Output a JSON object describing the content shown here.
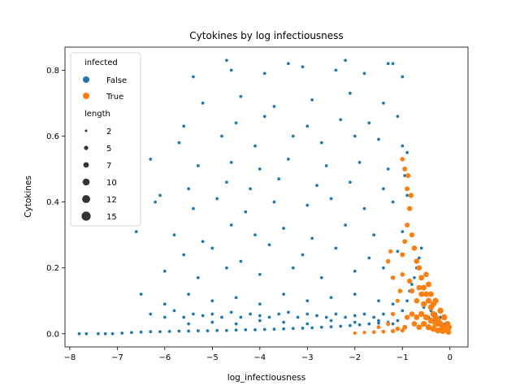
{
  "chart_data": {
    "type": "scatter",
    "title": "Cytokines by log infectiousness",
    "xlabel": "log_infectiousness",
    "ylabel": "Cytokines",
    "xlim": [
      -8.1,
      0.38
    ],
    "ylim": [
      -0.04,
      0.87
    ],
    "x_ticks": [
      -8,
      -7,
      -6,
      -5,
      -4,
      -3,
      -2,
      -1,
      0
    ],
    "y_ticks": [
      0.0,
      0.2,
      0.4,
      0.6,
      0.8
    ],
    "grid": false,
    "legend": {
      "placement": "top-left",
      "hue_title": "infected",
      "hue_entries": [
        {
          "label": "False",
          "color": "#1f77b4"
        },
        {
          "label": "True",
          "color": "#ff7f0e"
        }
      ],
      "size_title": "length",
      "size_entries": [
        {
          "label": "2",
          "value": 2
        },
        {
          "label": "5",
          "value": 5
        },
        {
          "label": "7",
          "value": 7
        },
        {
          "label": "10",
          "value": 10
        },
        {
          "label": "12",
          "value": 12
        },
        {
          "label": "15",
          "value": 15
        }
      ]
    },
    "series": [
      {
        "name": "False",
        "color": "#1f77b4",
        "points": [
          [
            -7.8,
            0.0
          ],
          [
            -7.65,
            0.0
          ],
          [
            -7.4,
            0.0
          ],
          [
            -7.25,
            0.0
          ],
          [
            -7.1,
            0.0
          ],
          [
            -6.9,
            0.002
          ],
          [
            -6.7,
            0.004
          ],
          [
            -6.5,
            0.005
          ],
          [
            -6.3,
            0.006
          ],
          [
            -6.1,
            0.006
          ],
          [
            -5.9,
            0.007
          ],
          [
            -5.7,
            0.008
          ],
          [
            -5.5,
            0.008
          ],
          [
            -5.3,
            0.009
          ],
          [
            -5.1,
            0.009
          ],
          [
            -4.9,
            0.01
          ],
          [
            -4.7,
            0.01
          ],
          [
            -4.5,
            0.011
          ],
          [
            -4.3,
            0.012
          ],
          [
            -4.1,
            0.012
          ],
          [
            -3.9,
            0.013
          ],
          [
            -3.7,
            0.014
          ],
          [
            -3.5,
            0.015
          ],
          [
            -3.3,
            0.016
          ],
          [
            -3.1,
            0.017
          ],
          [
            -2.9,
            0.018
          ],
          [
            -2.7,
            0.02
          ],
          [
            -2.5,
            0.021
          ],
          [
            -2.3,
            0.023
          ],
          [
            -2.1,
            0.025
          ],
          [
            -1.9,
            0.027
          ],
          [
            -1.7,
            0.03
          ],
          [
            -1.5,
            0.032
          ],
          [
            -1.3,
            0.035
          ],
          [
            -1.1,
            0.04
          ],
          [
            -6.3,
            0.06
          ],
          [
            -6.0,
            0.05
          ],
          [
            -5.8,
            0.07
          ],
          [
            -5.6,
            0.05
          ],
          [
            -5.4,
            0.06
          ],
          [
            -5.2,
            0.055
          ],
          [
            -5.0,
            0.06
          ],
          [
            -4.8,
            0.05
          ],
          [
            -4.6,
            0.065
          ],
          [
            -4.4,
            0.05
          ],
          [
            -4.2,
            0.06
          ],
          [
            -4.0,
            0.055
          ],
          [
            -3.8,
            0.05
          ],
          [
            -3.6,
            0.06
          ],
          [
            -3.4,
            0.065
          ],
          [
            -3.2,
            0.05
          ],
          [
            -3.0,
            0.06
          ],
          [
            -2.8,
            0.055
          ],
          [
            -2.6,
            0.05
          ],
          [
            -2.4,
            0.06
          ],
          [
            -2.2,
            0.05
          ],
          [
            -2.0,
            0.055
          ],
          [
            -1.8,
            0.06
          ],
          [
            -1.6,
            0.05
          ],
          [
            -1.4,
            0.06
          ],
          [
            -5.5,
            0.03
          ],
          [
            -5.0,
            0.035
          ],
          [
            -4.5,
            0.03
          ],
          [
            -4.0,
            0.04
          ],
          [
            -3.5,
            0.035
          ],
          [
            -3.0,
            0.03
          ],
          [
            -2.5,
            0.04
          ],
          [
            -2.0,
            0.035
          ],
          [
            -1.5,
            0.04
          ],
          [
            -1.2,
            0.03
          ],
          [
            -6.5,
            0.12
          ],
          [
            -6.0,
            0.09
          ],
          [
            -5.5,
            0.12
          ],
          [
            -5.0,
            0.1
          ],
          [
            -4.5,
            0.11
          ],
          [
            -4.0,
            0.09
          ],
          [
            -3.5,
            0.12
          ],
          [
            -3.0,
            0.1
          ],
          [
            -2.5,
            0.11
          ],
          [
            -2.0,
            0.12
          ],
          [
            -1.5,
            0.1
          ],
          [
            -1.2,
            0.09
          ],
          [
            -6.0,
            0.19
          ],
          [
            -5.3,
            0.17
          ],
          [
            -4.7,
            0.2
          ],
          [
            -4.0,
            0.18
          ],
          [
            -3.3,
            0.2
          ],
          [
            -2.7,
            0.17
          ],
          [
            -2.0,
            0.19
          ],
          [
            -1.4,
            0.2
          ],
          [
            -5.6,
            0.24
          ],
          [
            -5.0,
            0.26
          ],
          [
            -4.4,
            0.22
          ],
          [
            -3.8,
            0.27
          ],
          [
            -3.1,
            0.24
          ],
          [
            -2.4,
            0.26
          ],
          [
            -1.7,
            0.23
          ],
          [
            -1.1,
            0.25
          ],
          [
            -6.6,
            0.31
          ],
          [
            -5.8,
            0.3
          ],
          [
            -5.2,
            0.28
          ],
          [
            -4.6,
            0.33
          ],
          [
            -4.1,
            0.3
          ],
          [
            -3.5,
            0.32
          ],
          [
            -2.9,
            0.29
          ],
          [
            -2.2,
            0.33
          ],
          [
            -1.6,
            0.3
          ],
          [
            -1.0,
            0.31
          ],
          [
            -6.2,
            0.4
          ],
          [
            -5.4,
            0.38
          ],
          [
            -4.9,
            0.41
          ],
          [
            -4.3,
            0.37
          ],
          [
            -3.7,
            0.4
          ],
          [
            -3.0,
            0.39
          ],
          [
            -2.5,
            0.41
          ],
          [
            -1.8,
            0.38
          ],
          [
            -1.2,
            0.4
          ],
          [
            -0.9,
            0.42
          ],
          [
            -6.1,
            0.42
          ],
          [
            -5.5,
            0.44
          ],
          [
            -4.7,
            0.46
          ],
          [
            -4.2,
            0.44
          ],
          [
            -3.6,
            0.47
          ],
          [
            -2.8,
            0.45
          ],
          [
            -2.1,
            0.46
          ],
          [
            -1.4,
            0.44
          ],
          [
            -0.95,
            0.48
          ],
          [
            -6.3,
            0.53
          ],
          [
            -5.3,
            0.51
          ],
          [
            -4.6,
            0.52
          ],
          [
            -4.0,
            0.5
          ],
          [
            -3.4,
            0.53
          ],
          [
            -2.6,
            0.51
          ],
          [
            -1.9,
            0.52
          ],
          [
            -1.3,
            0.5
          ],
          [
            -0.9,
            0.55
          ],
          [
            -5.7,
            0.58
          ],
          [
            -4.8,
            0.6
          ],
          [
            -4.1,
            0.57
          ],
          [
            -3.3,
            0.6
          ],
          [
            -2.7,
            0.58
          ],
          [
            -2.0,
            0.6
          ],
          [
            -1.5,
            0.59
          ],
          [
            -1.0,
            0.57
          ],
          [
            -5.6,
            0.63
          ],
          [
            -4.5,
            0.64
          ],
          [
            -3.9,
            0.66
          ],
          [
            -3.0,
            0.63
          ],
          [
            -2.3,
            0.65
          ],
          [
            -1.7,
            0.64
          ],
          [
            -1.1,
            0.66
          ],
          [
            -5.2,
            0.7
          ],
          [
            -4.4,
            0.72
          ],
          [
            -3.7,
            0.69
          ],
          [
            -2.9,
            0.71
          ],
          [
            -2.1,
            0.73
          ],
          [
            -1.4,
            0.7
          ],
          [
            -5.4,
            0.78
          ],
          [
            -4.6,
            0.8
          ],
          [
            -3.9,
            0.79
          ],
          [
            -3.1,
            0.81
          ],
          [
            -2.4,
            0.8
          ],
          [
            -1.8,
            0.79
          ],
          [
            -1.3,
            0.82
          ],
          [
            -1.0,
            0.78
          ],
          [
            -4.7,
            0.83
          ],
          [
            -3.4,
            0.82
          ],
          [
            -2.2,
            0.83
          ],
          [
            -1.2,
            0.82
          ],
          [
            -1.0,
            0.07
          ],
          [
            -0.9,
            0.1
          ],
          [
            -0.85,
            0.13
          ],
          [
            -0.8,
            0.15
          ],
          [
            -0.75,
            0.17
          ],
          [
            -0.7,
            0.2
          ],
          [
            -0.65,
            0.23
          ],
          [
            -0.6,
            0.26
          ],
          [
            -0.55,
            0.08
          ],
          [
            -0.5,
            0.12
          ],
          [
            -0.45,
            0.05
          ],
          [
            -0.4,
            0.07
          ],
          [
            -0.35,
            0.04
          ],
          [
            -0.3,
            0.06
          ],
          [
            -0.25,
            0.03
          ],
          [
            -0.2,
            0.05
          ],
          [
            -0.15,
            0.02
          ],
          [
            -0.1,
            0.03
          ],
          [
            -0.05,
            0.01
          ],
          [
            -0.02,
            0.02
          ]
        ]
      },
      {
        "name": "True",
        "color": "#ff7f0e",
        "points": [
          [
            -2.0,
            0.002,
            3
          ],
          [
            -1.8,
            0.004,
            3
          ],
          [
            -1.6,
            0.005,
            4
          ],
          [
            -1.4,
            0.006,
            4
          ],
          [
            -1.2,
            0.008,
            5
          ],
          [
            -1.0,
            0.01,
            5
          ],
          [
            -1.5,
            0.02,
            4
          ],
          [
            -1.3,
            0.03,
            5
          ],
          [
            -1.2,
            0.06,
            5
          ],
          [
            -1.1,
            0.1,
            5
          ],
          [
            -1.05,
            0.13,
            6
          ],
          [
            -1.0,
            0.18,
            6
          ],
          [
            -1.3,
            0.22,
            6
          ],
          [
            -1.25,
            0.25,
            5
          ],
          [
            -1.2,
            0.17,
            6
          ],
          [
            -1.0,
            0.24,
            7
          ],
          [
            -0.95,
            0.28,
            7
          ],
          [
            -0.9,
            0.33,
            7
          ],
          [
            -0.85,
            0.38,
            8
          ],
          [
            -0.9,
            0.44,
            7
          ],
          [
            -0.95,
            0.5,
            7
          ],
          [
            -1.0,
            0.53,
            6
          ],
          [
            -0.88,
            0.48,
            7
          ],
          [
            -0.82,
            0.42,
            8
          ],
          [
            -0.8,
            0.3,
            8
          ],
          [
            -0.75,
            0.26,
            9
          ],
          [
            -0.7,
            0.22,
            9
          ],
          [
            -0.65,
            0.2,
            9
          ],
          [
            -0.6,
            0.17,
            10
          ],
          [
            -0.55,
            0.14,
            10
          ],
          [
            -0.5,
            0.12,
            11
          ],
          [
            -0.45,
            0.1,
            11
          ],
          [
            -0.4,
            0.08,
            12
          ],
          [
            -0.35,
            0.06,
            12
          ],
          [
            -0.3,
            0.05,
            12
          ],
          [
            -0.25,
            0.04,
            13
          ],
          [
            -0.2,
            0.03,
            13
          ],
          [
            -0.15,
            0.02,
            13
          ],
          [
            -0.1,
            0.015,
            12
          ],
          [
            -0.05,
            0.01,
            10
          ],
          [
            -0.6,
            0.06,
            11
          ],
          [
            -0.5,
            0.05,
            12
          ],
          [
            -0.4,
            0.04,
            12
          ],
          [
            -0.3,
            0.03,
            13
          ],
          [
            -0.7,
            0.05,
            10
          ],
          [
            -0.8,
            0.06,
            9
          ],
          [
            -0.9,
            0.05,
            8
          ],
          [
            -0.55,
            0.03,
            11
          ],
          [
            -0.45,
            0.02,
            12
          ],
          [
            -0.35,
            0.015,
            12
          ],
          [
            -0.25,
            0.01,
            12
          ],
          [
            -0.15,
            0.008,
            11
          ],
          [
            -0.5,
            0.18,
            9
          ],
          [
            -0.45,
            0.15,
            10
          ],
          [
            -0.6,
            0.12,
            10
          ],
          [
            -0.7,
            0.1,
            9
          ],
          [
            -0.8,
            0.13,
            8
          ],
          [
            -0.85,
            0.16,
            8
          ],
          [
            -0.65,
            0.14,
            9
          ],
          [
            -0.55,
            0.09,
            11
          ],
          [
            -0.4,
            0.12,
            10
          ],
          [
            -0.35,
            0.09,
            11
          ],
          [
            -0.3,
            0.1,
            11
          ],
          [
            -0.2,
            0.07,
            12
          ],
          [
            -0.12,
            0.05,
            12
          ],
          [
            -0.05,
            0.03,
            11
          ],
          [
            -0.02,
            0.02,
            10
          ],
          [
            -0.03,
            0.005,
            9
          ],
          [
            -0.75,
            0.03,
            9
          ],
          [
            -0.65,
            0.02,
            10
          ],
          [
            -0.95,
            0.02,
            7
          ],
          [
            -1.1,
            0.015,
            6
          ]
        ]
      }
    ]
  }
}
